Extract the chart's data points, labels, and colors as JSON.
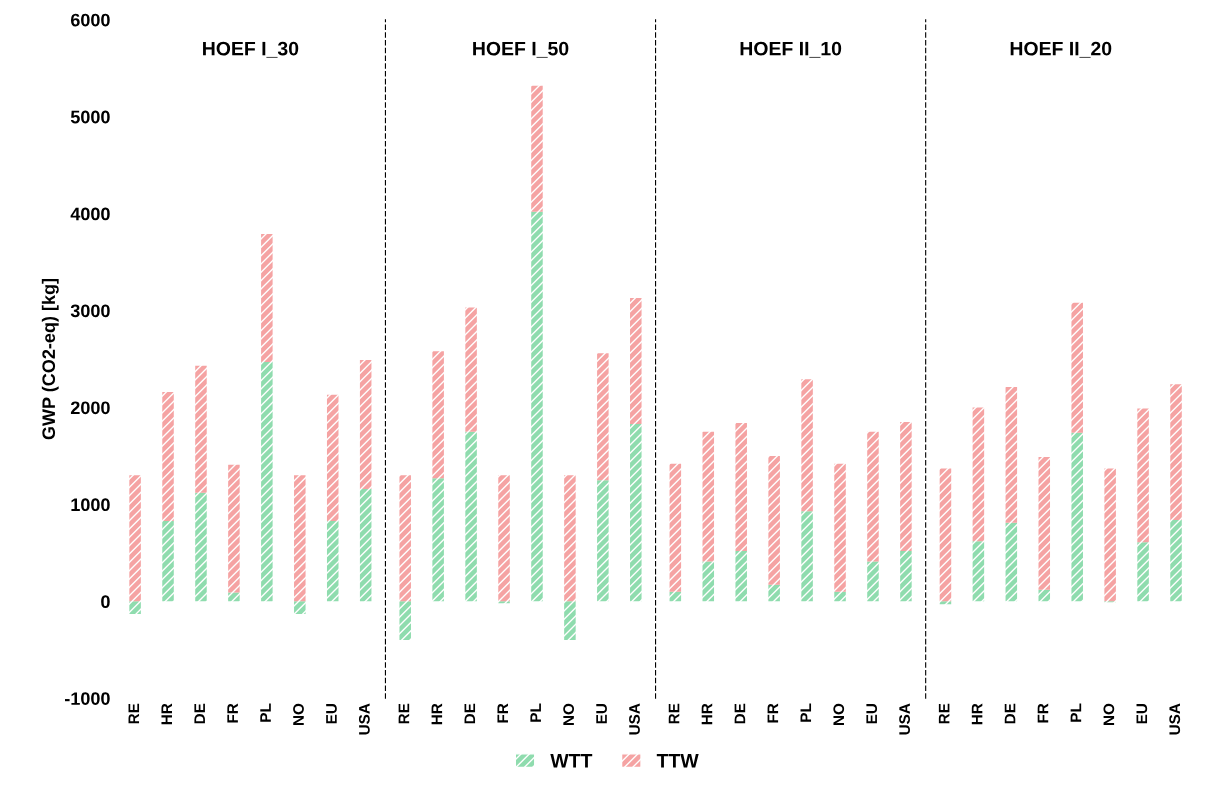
{
  "chart_data": [
    {
      "type": "bar",
      "stacked": true,
      "title": "HOEF I_30",
      "ylabel": "GWP (CO2-eq) [kg]",
      "categories": [
        "RE",
        "HR",
        "DE",
        "FR",
        "PL",
        "NO",
        "EU",
        "USA"
      ],
      "ylim": [
        -1000,
        6000
      ],
      "yticks": [
        -1000,
        0,
        1000,
        2000,
        3000,
        4000,
        5000,
        6000
      ],
      "grid": false,
      "legend": "bottom",
      "series": [
        {
          "name": "WTT",
          "color": "#8fdcae",
          "values": [
            -130,
            830,
            1120,
            90,
            2470,
            -130,
            830,
            1160
          ]
        },
        {
          "name": "TTW",
          "color": "#f5a3a3",
          "values": [
            1300,
            1330,
            1310,
            1320,
            1320,
            1300,
            1300,
            1330
          ]
        }
      ]
    },
    {
      "type": "bar",
      "stacked": true,
      "title": "HOEF I_50",
      "categories": [
        "RE",
        "HR",
        "DE",
        "FR",
        "PL",
        "NO",
        "EU",
        "USA"
      ],
      "ylim": [
        -1000,
        6000
      ],
      "yticks": [
        -1000,
        0,
        1000,
        2000,
        3000,
        4000,
        5000,
        6000
      ],
      "grid": false,
      "tick_labels": "x",
      "series": [
        {
          "color": "#8fdcae",
          "values": [
            -400,
            1270,
            1750,
            -20,
            4020,
            -400,
            1250,
            1830
          ]
        },
        {
          "color": "#f5a3a3",
          "values": [
            1300,
            1310,
            1280,
            1300,
            1300,
            1300,
            1310,
            1300
          ]
        }
      ]
    },
    {
      "type": "bar",
      "stacked": true,
      "title": "HOEF II_10",
      "categories": [
        "RE",
        "HR",
        "DE",
        "FR",
        "PL",
        "NO",
        "EU",
        "USA"
      ],
      "ylim": [
        -1000,
        6000
      ],
      "yticks": [
        -1000,
        0,
        1000,
        2000,
        3000,
        4000,
        5000,
        6000
      ],
      "grid": false,
      "tick_labels": "x",
      "series": [
        {
          "color": "#8fdcae",
          "values": [
            100,
            410,
            520,
            170,
            930,
            100,
            410,
            520
          ]
        },
        {
          "color": "#f5a3a3",
          "values": [
            1320,
            1340,
            1320,
            1330,
            1360,
            1320,
            1340,
            1330
          ]
        }
      ]
    },
    {
      "type": "bar",
      "stacked": true,
      "title": "HOEF II_20",
      "categories": [
        "RE",
        "HR",
        "DE",
        "FR",
        "PL",
        "NO",
        "EU",
        "USA"
      ],
      "ylim": [
        -1000,
        6000
      ],
      "yticks": [
        -1000,
        0,
        1000,
        2000,
        3000,
        4000,
        5000,
        6000
      ],
      "grid": false,
      "tick_labels": "x",
      "series": [
        {
          "color": "#8fdcae",
          "values": [
            -30,
            620,
            810,
            120,
            1740,
            -10,
            610,
            840
          ]
        },
        {
          "color": "#f5a3a3",
          "values": [
            1370,
            1380,
            1400,
            1370,
            1340,
            1370,
            1380,
            1400
          ]
        }
      ]
    }
  ]
}
